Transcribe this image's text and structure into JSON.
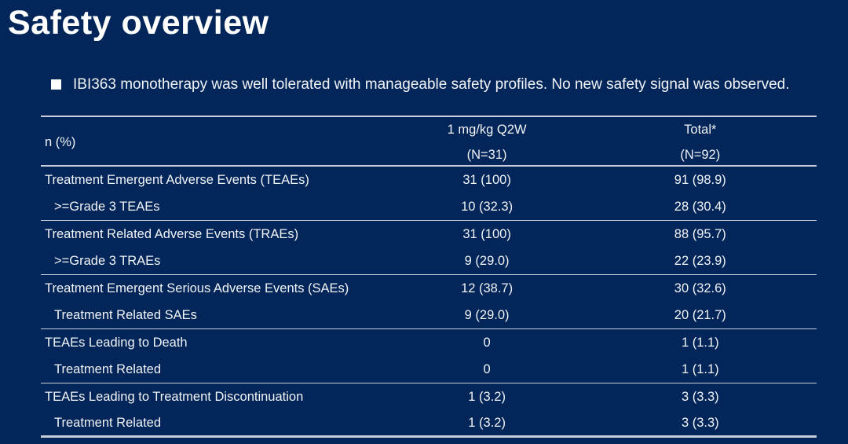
{
  "colors": {
    "background": "#02265a",
    "text": "#f2f3f5",
    "title": "#ffffff",
    "table_line": "#c9cfd8"
  },
  "slide": {
    "title": "Safety overview",
    "bullet_icon": "square-bullet",
    "bullet_text": "IBI363 monotherapy was well tolerated with manageable safety profiles. No new safety signal was observed."
  },
  "table": {
    "row_header_label": "n (%)",
    "columns": [
      {
        "line1": "1 mg/kg Q2W",
        "line2": "(N=31)"
      },
      {
        "line1": "Total*",
        "line2": "(N=92)"
      }
    ],
    "rows": [
      {
        "label": "Treatment Emergent Adverse Events (TEAEs)",
        "indent": false,
        "dose_q2w": "31 (100)",
        "total": "91 (98.9)",
        "group_end": false
      },
      {
        "label": ">=Grade 3 TEAEs",
        "indent": true,
        "dose_q2w": "10 (32.3)",
        "total": "28 (30.4)",
        "group_end": true
      },
      {
        "label": "Treatment Related Adverse Events (TRAEs)",
        "indent": false,
        "dose_q2w": "31 (100)",
        "total": "88 (95.7)",
        "group_end": false
      },
      {
        "label": ">=Grade 3 TRAEs",
        "indent": true,
        "dose_q2w": "9 (29.0)",
        "total": "22 (23.9)",
        "group_end": true
      },
      {
        "label": "Treatment Emergent Serious Adverse Events (SAEs)",
        "indent": false,
        "dose_q2w": "12 (38.7)",
        "total": "30 (32.6)",
        "group_end": false
      },
      {
        "label": "Treatment Related SAEs",
        "indent": true,
        "dose_q2w": "9 (29.0)",
        "total": "20 (21.7)",
        "group_end": true
      },
      {
        "label": "TEAEs Leading to Death",
        "indent": false,
        "dose_q2w": "0",
        "total": "1 (1.1)",
        "group_end": false
      },
      {
        "label": "Treatment Related",
        "indent": true,
        "dose_q2w": "0",
        "total": "1 (1.1)",
        "group_end": true
      },
      {
        "label": "TEAEs Leading to Treatment Discontinuation",
        "indent": false,
        "dose_q2w": "1 (3.2)",
        "total": "3 (3.3)",
        "group_end": false
      },
      {
        "label": "Treatment Related",
        "indent": true,
        "dose_q2w": "1 (3.2)",
        "total": "3 (3.3)",
        "group_end": true
      }
    ]
  }
}
